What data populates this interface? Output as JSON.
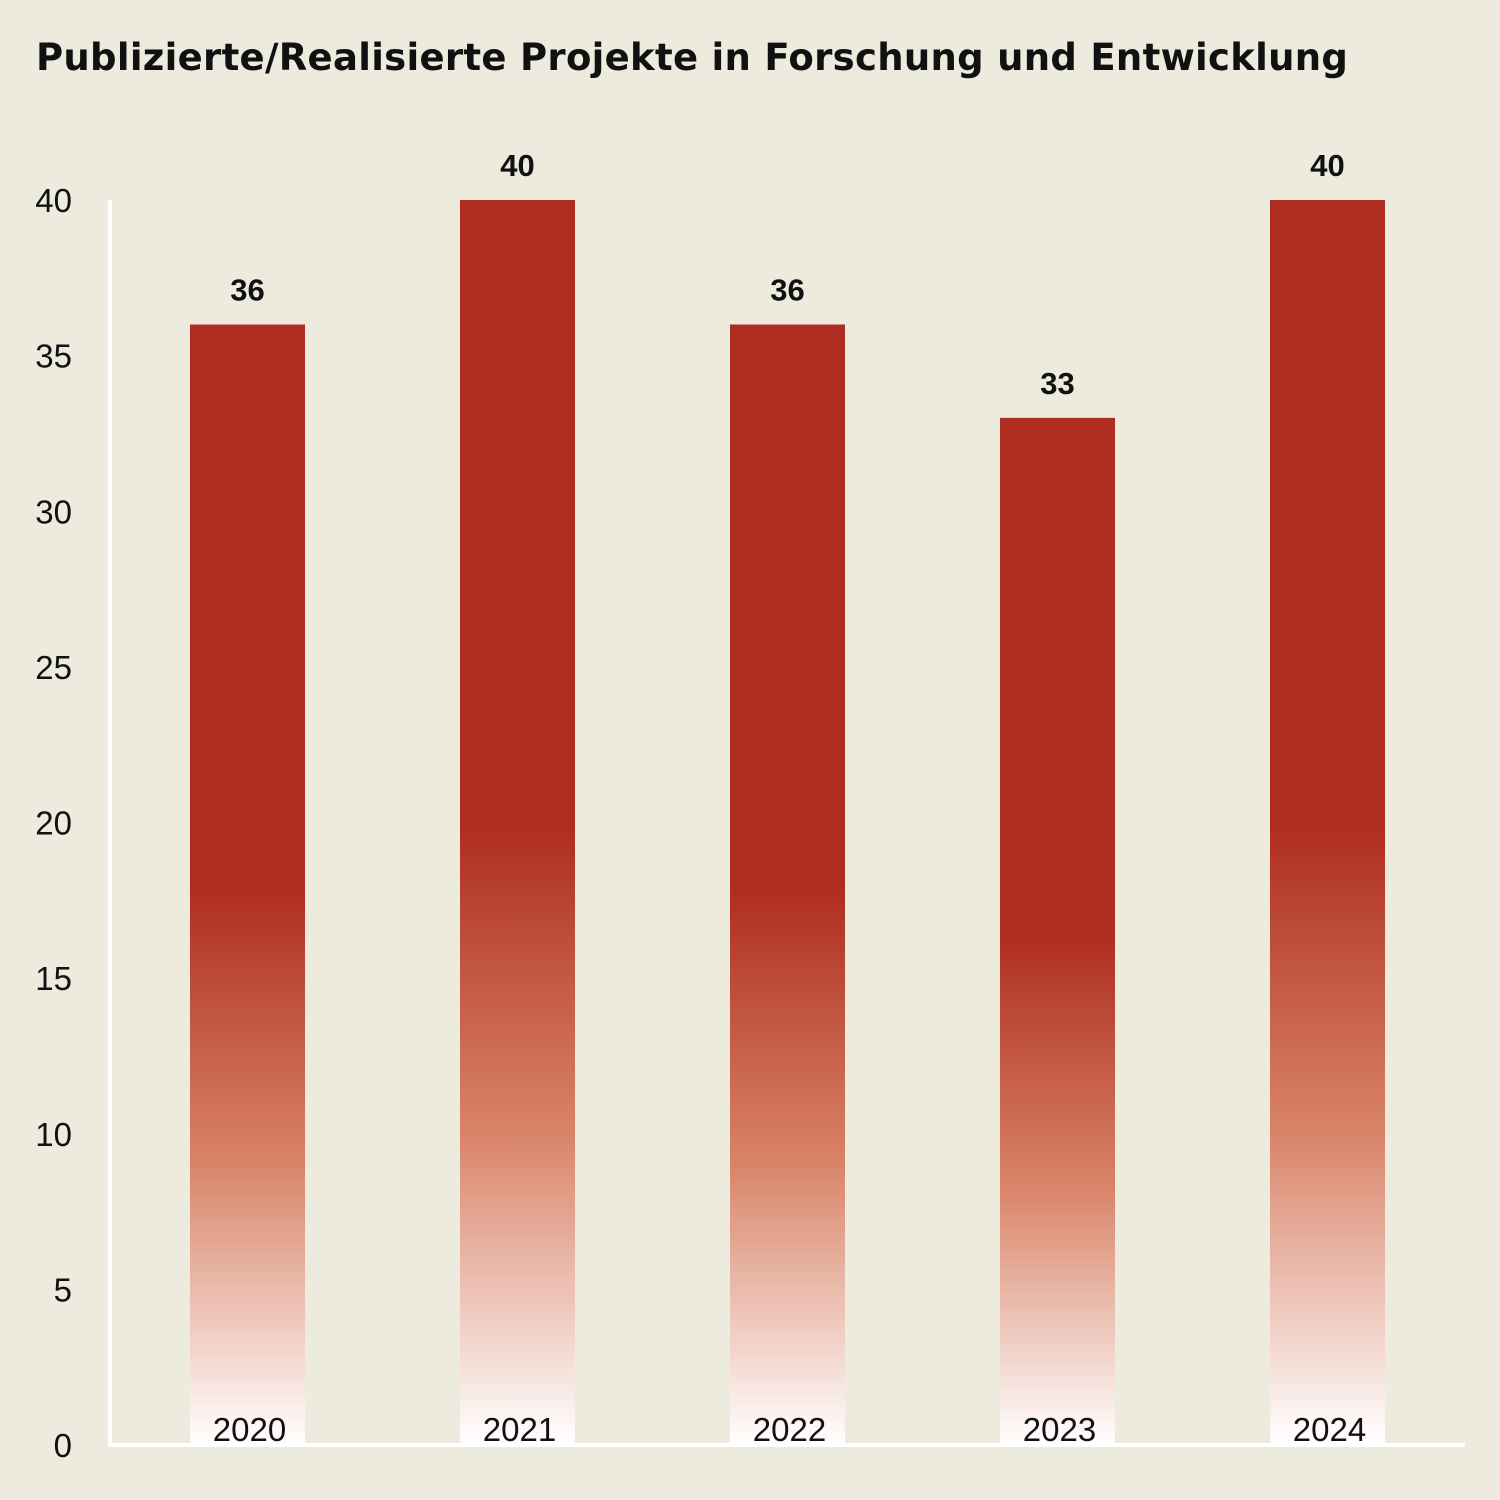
{
  "chart_data": {
    "type": "bar",
    "title": "Publizierte/Realisierte Projekte in Forschung und Entwicklung",
    "categories": [
      "2020",
      "2021",
      "2022",
      "2023",
      "2024"
    ],
    "values": [
      36,
      40,
      36,
      33,
      40
    ],
    "xlabel": "",
    "ylabel": "",
    "ylim": [
      0,
      40
    ],
    "yticks": [
      0,
      5,
      10,
      15,
      20,
      25,
      30,
      35,
      40
    ],
    "grid": false,
    "data_labels": true,
    "colors": {
      "bar": "#ae2c20",
      "bar_fade": "#ffffff",
      "background": "#ecebde",
      "axis": "#ffffff"
    }
  }
}
